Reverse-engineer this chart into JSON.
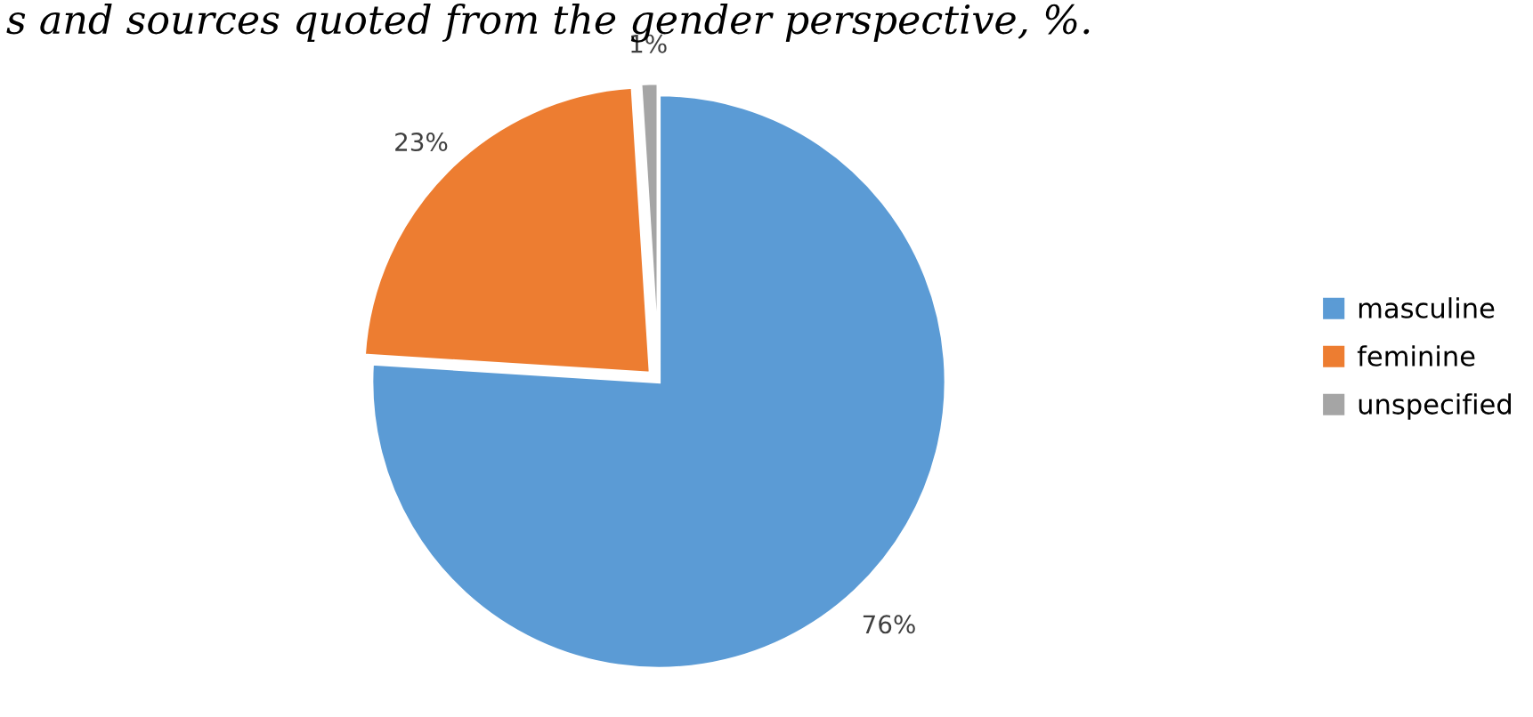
{
  "chart_data": {
    "type": "pie",
    "title": "s and sources quoted from the gender perspective, %.",
    "categories": [
      "masculine",
      "feminine",
      "unspecified"
    ],
    "values": [
      76,
      23,
      1
    ],
    "colors": [
      "#5b9bd5",
      "#ed7d31",
      "#a5a5a5"
    ],
    "value_labels": [
      "76%",
      "23%",
      "1%"
    ],
    "legend": "right"
  }
}
